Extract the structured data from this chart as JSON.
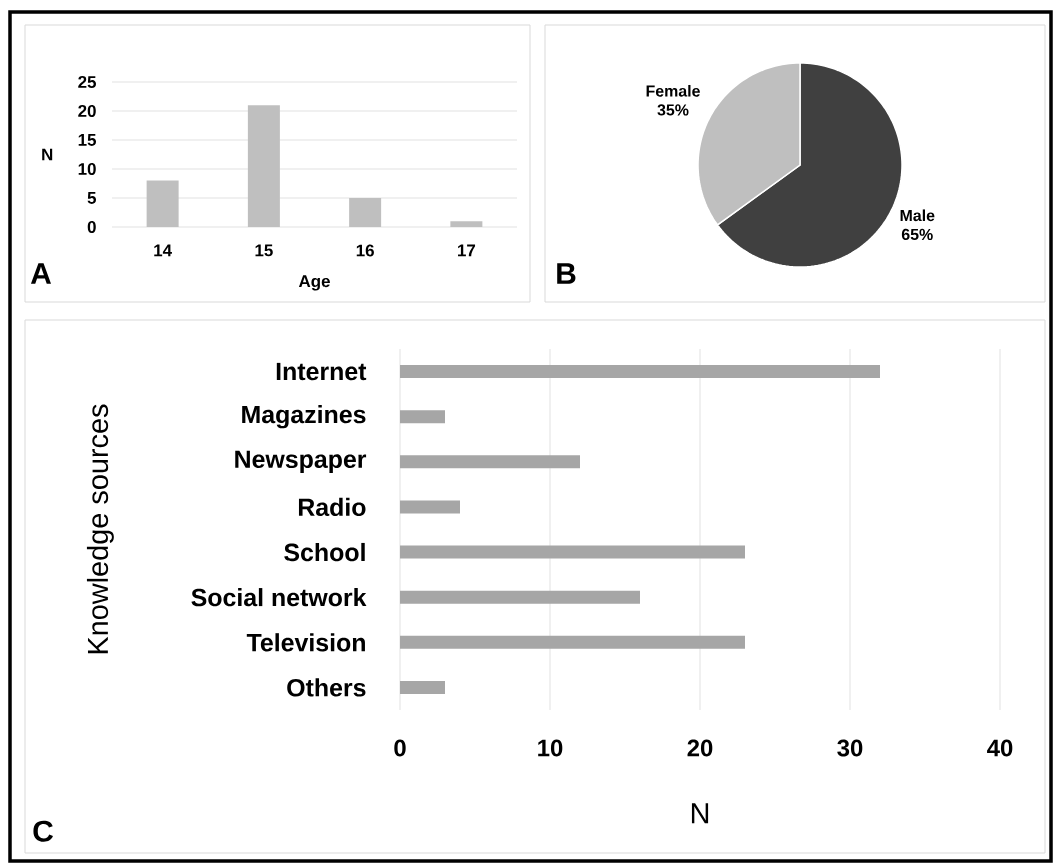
{
  "chart_data": [
    {
      "type": "bar",
      "categories": [
        "14",
        "15",
        "16",
        "17"
      ],
      "values": [
        8,
        21,
        5,
        1
      ],
      "color": "#bfbfbf",
      "xlabel": "Age",
      "ylabel": "N",
      "ylim": [
        0,
        25
      ],
      "yticks": [
        0,
        5,
        10,
        15,
        20,
        25
      ],
      "grid": "y",
      "annotations": [
        "A"
      ]
    },
    {
      "type": "pie",
      "categories": [
        "Male",
        "Female"
      ],
      "values": [
        65,
        35
      ],
      "colors": [
        "#404040",
        "#bfbfbf"
      ],
      "value_labels": [
        "65%",
        "35%"
      ],
      "annotations": [
        "B"
      ]
    },
    {
      "type": "bar",
      "orientation": "horizontal",
      "categories": [
        "Internet",
        "Magazines",
        "Newspaper",
        "Radio",
        "School",
        "Social network",
        "Television",
        "Others"
      ],
      "values": [
        32,
        3,
        12,
        4,
        23,
        16,
        23,
        3
      ],
      "color": "#a6a6a6",
      "xlabel": "N",
      "ylabel": "Knowledge sources",
      "xlim": [
        0,
        40
      ],
      "xticks": [
        0,
        10,
        20,
        30,
        40
      ],
      "grid": "x",
      "annotations": [
        "C"
      ]
    }
  ]
}
